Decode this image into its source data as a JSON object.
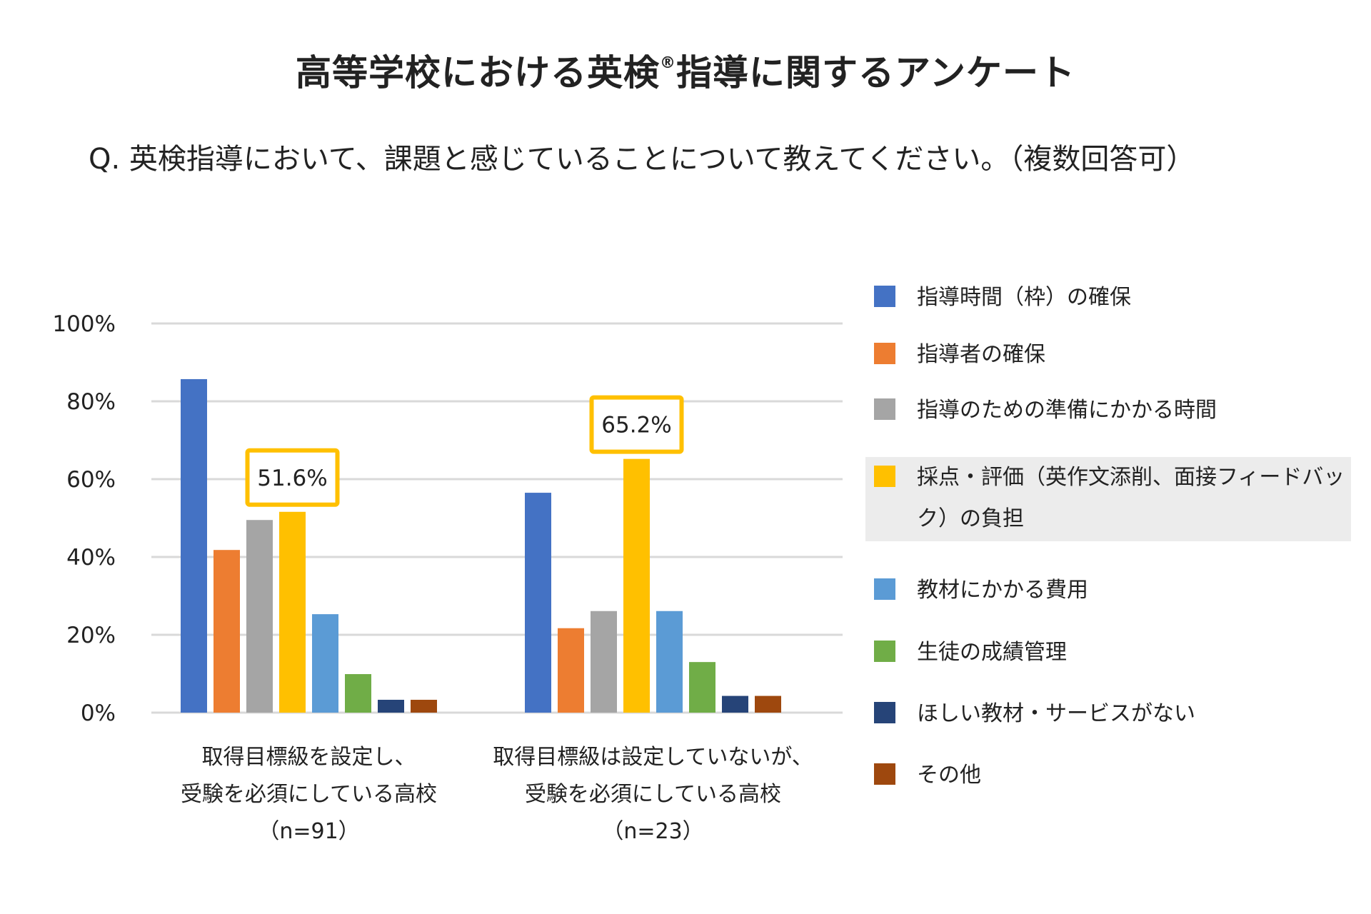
{
  "title": {
    "main": "高等学校における英検",
    "registered_mark": "®",
    "rest": "指導に関するアンケート"
  },
  "question": "Q. 英検指導において、課題と感じていることについて教えてください。（複数回答可）",
  "chart_data": {
    "type": "bar",
    "title": "高等学校における英検® 指導に関するアンケート",
    "subtitle": "Q. 英検指導において、課題と感じていることについて教えてください。（複数回答可）",
    "xlabel": "",
    "ylabel": "",
    "ylim": [
      0,
      100
    ],
    "yticks": [
      0,
      20,
      40,
      60,
      80,
      100
    ],
    "ytick_labels": [
      "0%",
      "20%",
      "40%",
      "60%",
      "80%",
      "100%"
    ],
    "grid": true,
    "legend_position": "right",
    "categories": [
      {
        "lines": [
          "取得目標級を設定し、",
          "受験を必須にしている高校",
          "（n=91）"
        ]
      },
      {
        "lines": [
          "取得目標級は設定していないが、",
          "受験を必須にしている高校",
          "（n=23）"
        ]
      }
    ],
    "series": [
      {
        "name": "指導時間（枠）の確保",
        "color": "#4472c4",
        "values": [
          85.7,
          56.5
        ]
      },
      {
        "name": "指導者の確保",
        "color": "#ed7d31",
        "values": [
          41.8,
          21.7
        ]
      },
      {
        "name": "指導のための準備にかかる時間",
        "color": "#a5a5a5",
        "values": [
          49.5,
          26.1
        ]
      },
      {
        "name": "採点・評価（英作文添削、面接フィードバック）の負担",
        "color": "#ffc000",
        "values": [
          51.6,
          65.2
        ],
        "highlight": true
      },
      {
        "name": "教材にかかる費用",
        "color": "#5b9bd5",
        "values": [
          25.3,
          26.1
        ]
      },
      {
        "name": "生徒の成績管理",
        "color": "#70ad47",
        "values": [
          9.9,
          13.0
        ]
      },
      {
        "name": "ほしい教材・サービスがない",
        "color": "#264478",
        "values": [
          3.3,
          4.3
        ]
      },
      {
        "name": "その他",
        "color": "#9e480e",
        "values": [
          3.3,
          4.3
        ]
      }
    ],
    "callouts": [
      {
        "category": 0,
        "series": 3,
        "label": "51.6%"
      },
      {
        "category": 1,
        "series": 3,
        "label": "65.2%"
      }
    ]
  }
}
